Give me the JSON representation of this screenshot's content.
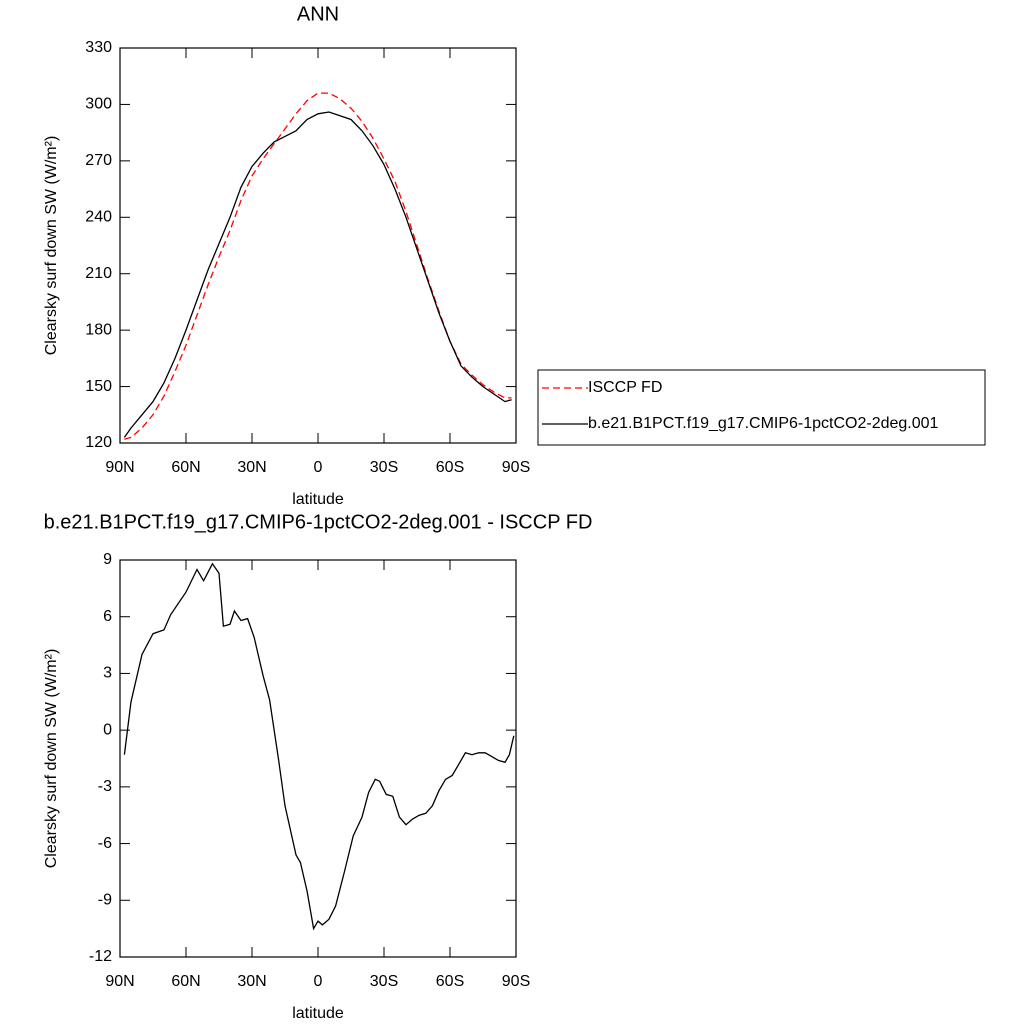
{
  "chart_data": [
    {
      "type": "line",
      "title": "ANN",
      "xlabel": "latitude",
      "ylabel": "Clearsky surf down SW (W/m²)",
      "x": [
        88,
        85,
        80,
        75,
        70,
        65,
        60,
        55,
        50,
        45,
        40,
        35,
        30,
        25,
        20,
        15,
        10,
        5,
        0,
        -5,
        -10,
        -15,
        -20,
        -25,
        -30,
        -35,
        -40,
        -45,
        -50,
        -55,
        -60,
        -65,
        -70,
        -75,
        -80,
        -85,
        -88
      ],
      "series": [
        {
          "name": "ISCCP FD",
          "color": "#ff0000",
          "dash": "dashed",
          "values": [
            122,
            123,
            128,
            135,
            145,
            158,
            172,
            188,
            204,
            219,
            233,
            249,
            262,
            271,
            279,
            287,
            295,
            302,
            306,
            306,
            303,
            298,
            291,
            282,
            271,
            259,
            243,
            225,
            207,
            190,
            174,
            162,
            156,
            151,
            147,
            144,
            144
          ]
        },
        {
          "name": "b.e21.B1PCT.f19_g17.CMIP6-1pctCO2-2deg.001",
          "color": "#000000",
          "dash": "solid",
          "values": [
            123,
            128,
            135,
            142,
            152,
            165,
            180,
            196,
            212,
            226,
            240,
            256,
            267,
            274,
            280,
            283,
            286,
            292,
            295,
            296,
            294,
            292,
            286,
            278,
            268,
            255,
            240,
            223,
            206,
            189,
            174,
            161,
            155,
            150,
            146,
            142,
            143
          ]
        }
      ],
      "xlim": [
        90,
        -90
      ],
      "xticks": [
        {
          "value": 90,
          "label": "90N"
        },
        {
          "value": 60,
          "label": "60N"
        },
        {
          "value": 30,
          "label": "30N"
        },
        0,
        {
          "value": -30,
          "label": "30S"
        },
        {
          "value": -60,
          "label": "60S"
        },
        {
          "value": -90,
          "label": "90S"
        }
      ],
      "ylim": [
        120,
        330
      ],
      "yticks": [
        120,
        150,
        180,
        210,
        240,
        270,
        300,
        330
      ],
      "legend": "right"
    },
    {
      "type": "line",
      "title": "b.e21.B1PCT.f19_g17.CMIP6-1pctCO2-2deg.001 - ISCCP FD",
      "xlabel": "latitude",
      "ylabel": "Clearsky surf down SW (W/m²)",
      "x": [
        88,
        85,
        80,
        75,
        70,
        67,
        60,
        55,
        52,
        48,
        45,
        43,
        40,
        38,
        35,
        32,
        29,
        25,
        22,
        18,
        15,
        10,
        8,
        5,
        2,
        0,
        -2,
        -5,
        -8,
        -12,
        -16,
        -20,
        -23,
        -26,
        -28,
        -31,
        -34,
        -37,
        -40,
        -43,
        -46,
        -49,
        -52,
        -55,
        -58,
        -61,
        -64,
        -67,
        -70,
        -73,
        -76,
        -79,
        -82,
        -85,
        -87,
        -89
      ],
      "series": [
        {
          "color": "#000000",
          "dash": "solid",
          "values": [
            -1.3,
            1.5,
            4,
            5.1,
            5.3,
            6.1,
            7.3,
            8.5,
            7.9,
            8.8,
            8.3,
            5.5,
            5.6,
            6.3,
            5.8,
            5.9,
            4.9,
            2.9,
            1.6,
            -1.5,
            -4,
            -6.6,
            -7,
            -8.5,
            -10.5,
            -10.1,
            -10.3,
            -10,
            -9.3,
            -7.5,
            -5.6,
            -4.6,
            -3.3,
            -2.6,
            -2.7,
            -3.4,
            -3.5,
            -4.6,
            -5,
            -4.7,
            -4.5,
            -4.4,
            -4,
            -3.2,
            -2.6,
            -2.4,
            -1.8,
            -1.2,
            -1.3,
            -1.2,
            -1.2,
            -1.4,
            -1.6,
            -1.7,
            -1.3,
            -0.3
          ]
        }
      ],
      "xlim": [
        90,
        -90
      ],
      "xticks": [
        {
          "value": 90,
          "label": "90N"
        },
        {
          "value": 60,
          "label": "60N"
        },
        {
          "value": 30,
          "label": "30N"
        },
        0,
        {
          "value": -30,
          "label": "30S"
        },
        {
          "value": -60,
          "label": "60S"
        },
        {
          "value": -90,
          "label": "90S"
        }
      ],
      "ylim": [
        -12,
        9
      ],
      "yticks": [
        -12,
        -9,
        -6,
        -3,
        0,
        3,
        6,
        9
      ]
    }
  ]
}
